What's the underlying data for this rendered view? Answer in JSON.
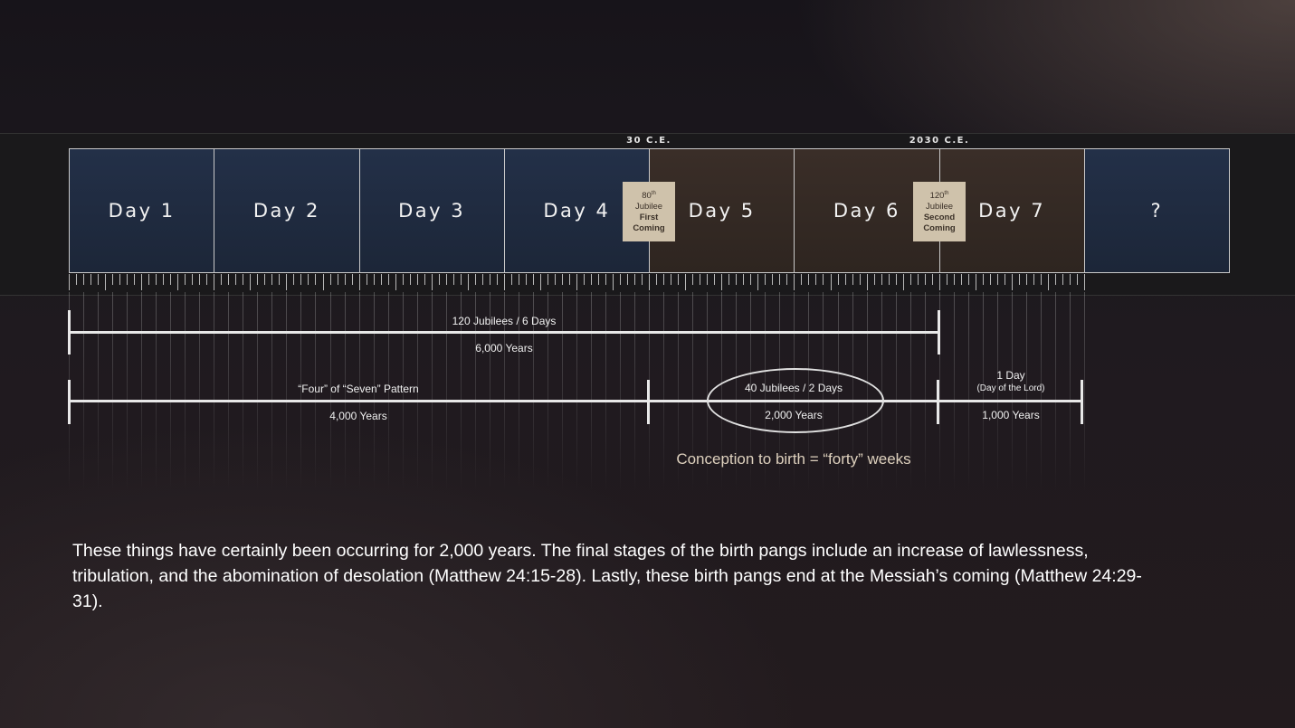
{
  "timeline": {
    "days": [
      {
        "label": "Day 1",
        "tone": "blue"
      },
      {
        "label": "Day 2",
        "tone": "blue"
      },
      {
        "label": "Day 3",
        "tone": "blue"
      },
      {
        "label": "Day 4",
        "tone": "blue"
      },
      {
        "label": "Day 5",
        "tone": "brown"
      },
      {
        "label": "Day 6",
        "tone": "brown"
      },
      {
        "label": "Day 7",
        "tone": "brown"
      },
      {
        "label": "?",
        "tone": "blue"
      }
    ],
    "markers": [
      {
        "date": "30 C.E.",
        "jubilee_num": "80",
        "jubilee_sup": "th",
        "jubilee_word": "Jubilee",
        "role_line1": "First",
        "role_line2": "Coming"
      },
      {
        "date": "2030 C.E.",
        "jubilee_num": "120",
        "jubilee_sup": "th",
        "jubilee_word": "Jubilee",
        "role_line1": "Second",
        "role_line2": "Coming"
      }
    ]
  },
  "spans": {
    "six_days": {
      "top": "120 Jubilees / 6 Days",
      "bottom": "6,000 Years"
    },
    "four_of_seven": {
      "top": "“Four” of “Seven” Pattern",
      "bottom": "4,000 Years"
    },
    "forty_jubilees": {
      "top": "40 Jubilees / 2 Days",
      "bottom": "2,000 Years"
    },
    "day_of_lord": {
      "top1": "1 Day",
      "top2": "(Day of the Lord)",
      "bottom": "1,000 Years"
    }
  },
  "conception": "Conception to birth = “forty” weeks",
  "paragraph": "These things have certainly been occurring for 2,000 years. The final stages of the birth pangs include an increase of lawlessness, tribulation, and the abomination of desolation (Matthew 24:15-28). Lastly, these birth pangs end at the Messiah’s coming (Matthew 24:29-31).",
  "colors": {
    "day_blue": "#233048",
    "day_brown": "#3a2e28",
    "jubilee_box": "#cfc2ab",
    "conception_text": "#ddd0bd"
  }
}
